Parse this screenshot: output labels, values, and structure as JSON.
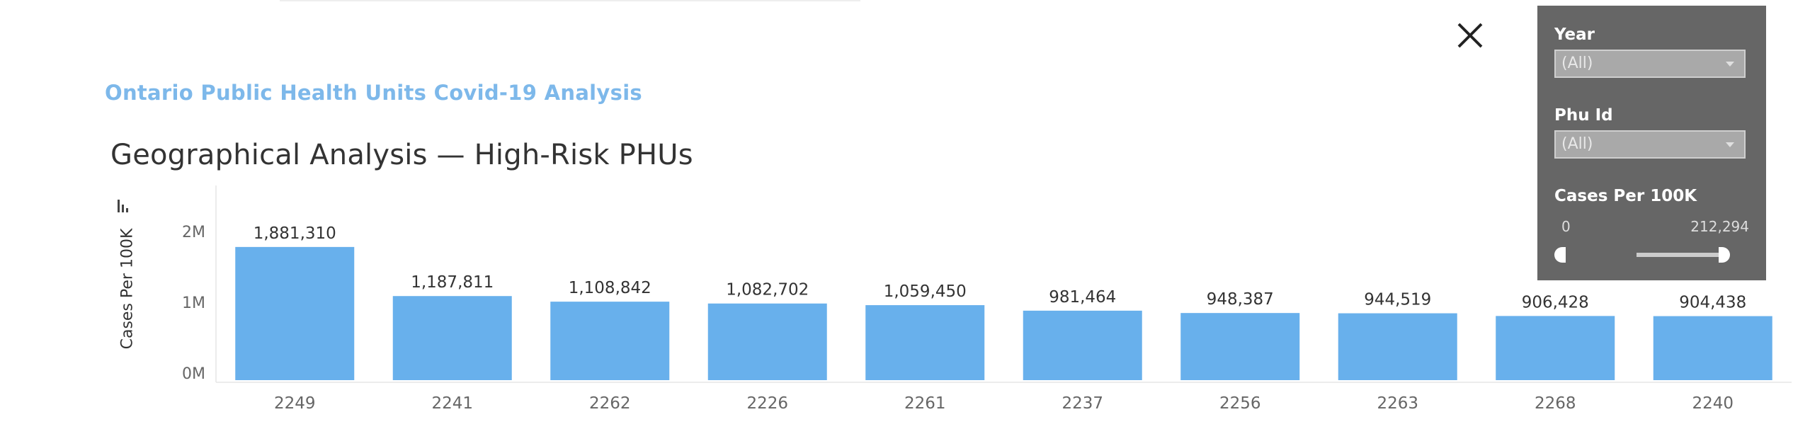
{
  "dashboard_title": "Ontario Public Health Units Covid-19 Analysis",
  "chart_title": "Geographical Analysis — High-Risk PHUs",
  "close_icon": "close-icon",
  "axis_icon": "sort-bars-icon",
  "filters": {
    "year": {
      "label": "Year",
      "value": "(All)"
    },
    "phu_id": {
      "label": "Phu Id",
      "value": "(All)"
    },
    "cases_range": {
      "label": "Cases Per 100K",
      "min": "0",
      "max": "212,294"
    }
  },
  "colors": {
    "bar": "#68b0ec",
    "title": "#7db8ea",
    "filter_panel": "#666666"
  },
  "chart_data": {
    "type": "bar",
    "title": "Geographical Analysis — High-Risk PHUs",
    "xlabel": "",
    "ylabel": "Cases Per 100K",
    "categories": [
      "2249",
      "2241",
      "2262",
      "2226",
      "2261",
      "2237",
      "2256",
      "2263",
      "2268",
      "2240"
    ],
    "values": [
      1881310,
      1187811,
      1108842,
      1082702,
      1059450,
      981464,
      948387,
      944519,
      906428,
      904438
    ],
    "value_labels": [
      "1,881,310",
      "1,187,811",
      "1,108,842",
      "1,082,702",
      "1,059,450",
      "981,464",
      "948,387",
      "944,519",
      "906,428",
      "904,438"
    ],
    "y_ticks": [
      0,
      1000000,
      2000000
    ],
    "y_tick_labels": [
      "0M",
      "1M",
      "2M"
    ],
    "ylim": [
      0,
      2000000
    ],
    "grid": false,
    "legend": "none"
  }
}
